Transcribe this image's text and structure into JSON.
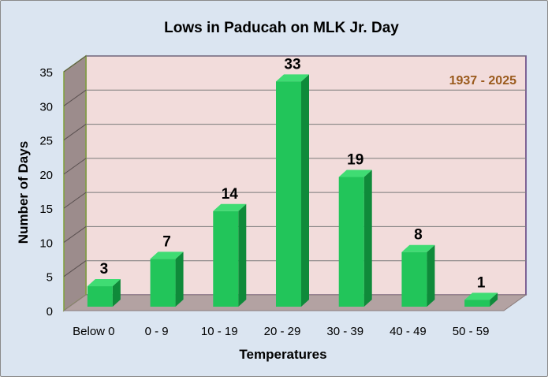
{
  "chart_data": {
    "type": "bar",
    "title": "Lows in Paducah on MLK Jr. Day",
    "annotation": "1937 - 2025",
    "xlabel": "Temperatures",
    "ylabel": "Number of Days",
    "categories": [
      "Below 0",
      "0 - 9",
      "10 - 19",
      "20 - 29",
      "30 - 39",
      "40 - 49",
      "50 - 59"
    ],
    "values": [
      3,
      7,
      14,
      33,
      19,
      8,
      1
    ],
    "ylim": [
      0,
      35
    ],
    "yticks": [
      0,
      5,
      10,
      15,
      20,
      25,
      30,
      35
    ],
    "grid": true,
    "legend": "none",
    "colors": {
      "bar_front": "#22c55a",
      "bar_top": "#3fdc73",
      "bar_side": "#0f8a3a",
      "back_wall": "#f2dcdb",
      "side_wall": "#9c8c8c",
      "floor": "#b3a2a2",
      "annotation": "#9a5a1c",
      "wall_edge": "#7fa23a",
      "plot_border": "#5a3a7a"
    }
  }
}
